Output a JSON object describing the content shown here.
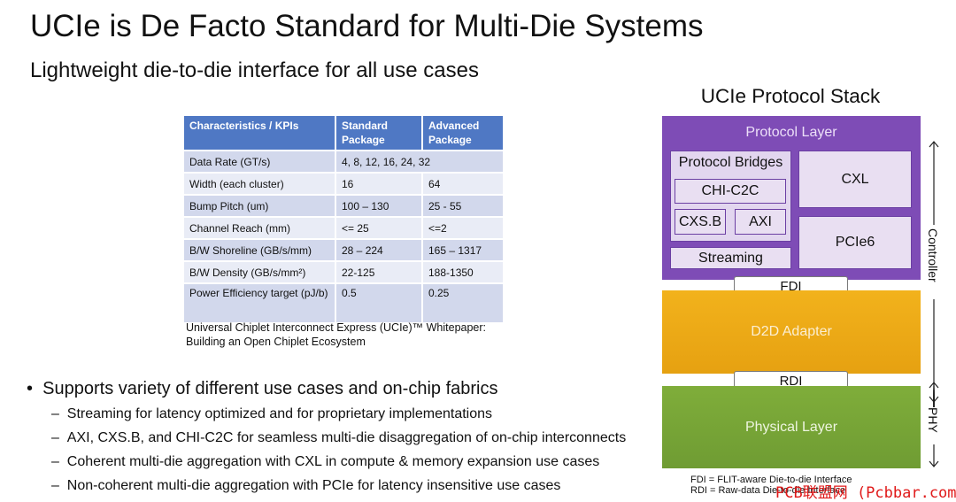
{
  "title": "UCIe is De Facto Standard for Multi-Die Systems",
  "subtitle": "Lightweight die-to-die interface for all use cases",
  "table": {
    "headers": [
      [
        "Characteristics / KPIs"
      ],
      [
        "Standard",
        "Package"
      ],
      [
        "Advanced",
        "Package"
      ]
    ],
    "rows": [
      [
        "Data Rate (GT/s)",
        "4, 8, 12, 16, 24, 32",
        ""
      ],
      [
        "Width (each cluster)",
        "16",
        "64"
      ],
      [
        "Bump  Pitch (um)",
        "100 – 130",
        "25 - 55"
      ],
      [
        "Channel Reach (mm)",
        "<= 25",
        "<=2"
      ],
      [
        "B/W Shoreline (GB/s/mm)",
        "28 – 224",
        "165 – 1317"
      ],
      [
        "B/W Density (GB/s/mm²)",
        "22-125",
        "188-1350"
      ],
      [
        "Power Efficiency target (pJ/b)",
        "0.5",
        "0.25"
      ]
    ],
    "caption_line1": "Universal Chiplet Interconnect Express (UCIe)™ Whitepaper:",
    "caption_line2": "Building an Open Chiplet Ecosystem"
  },
  "bullets": {
    "main": "Supports variety of different use cases and on-chip fabrics",
    "subs": [
      "Streaming for latency optimized and for proprietary implementations",
      "AXI, CXS.B, and CHI-C2C for seamless multi-die disaggregation of on-chip interconnects",
      "Coherent multi-die aggregation with CXL in compute & memory expansion use cases",
      "Non-coherent multi-die aggregation with PCIe for latency insensitive use cases"
    ]
  },
  "stack": {
    "title": "UCIe Protocol Stack",
    "protocol_layer": "Protocol Layer",
    "protocol_bridges": "Protocol Bridges",
    "chi_c2c": "CHI-C2C",
    "cxs_b": "CXS.B",
    "axi": "AXI",
    "streaming": "Streaming",
    "cxl": "CXL",
    "pcie6": "PCIe6",
    "fdi": "FDI",
    "d2d_adapter": "D2D Adapter",
    "rdi": "RDI",
    "physical_layer": "Physical Layer",
    "controller": "Controller",
    "phy": "PHY",
    "footnote_fdi": "FDI = FLIT-aware Die-to-die Interface",
    "footnote_rdi": "RDI = Raw-data Die-to-die Interface"
  },
  "watermark": "PCB联盟网 (Pcbbar.com)",
  "colors": {
    "protocol_layer": "#7e4cb6",
    "d2d_adapter": "#f2b21c",
    "physical_layer": "#7fad3a",
    "table_header": "#4f78c4",
    "watermark": "#e01919"
  }
}
